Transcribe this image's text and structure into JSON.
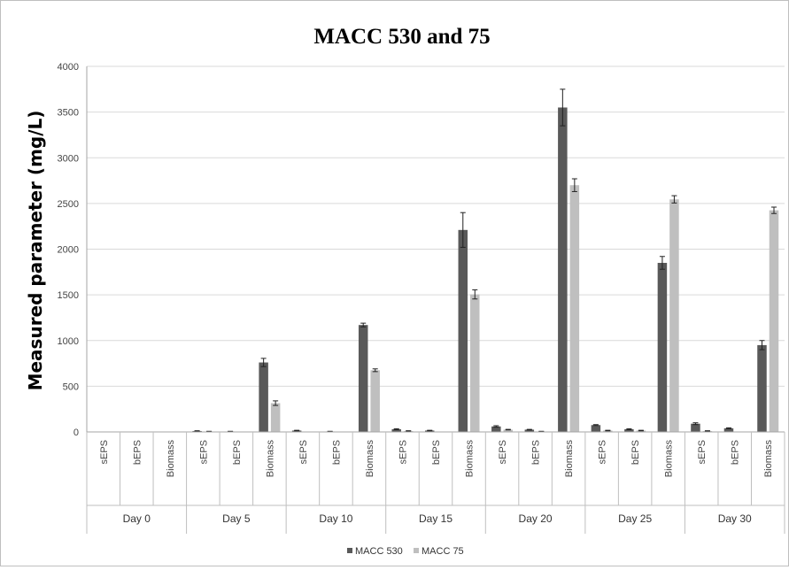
{
  "chart_data": {
    "type": "bar",
    "title": "MACC 530 and 75",
    "xlabel": "",
    "ylabel": "Measured parameter (mg/L)",
    "ylim": [
      0,
      4000
    ],
    "yticks": [
      0,
      500,
      1000,
      1500,
      2000,
      2500,
      3000,
      3500,
      4000
    ],
    "grid": true,
    "legend_position": "bottom",
    "groups": [
      "Day 0",
      "Day 5",
      "Day 10",
      "Day 15",
      "Day 20",
      "Day 25",
      "Day 30"
    ],
    "subcategories": [
      "sEPS",
      "bEPS",
      "Biomass"
    ],
    "series": [
      {
        "name": "MACC 530",
        "color": "#595959",
        "values": [
          0,
          0,
          0,
          10,
          5,
          760,
          15,
          5,
          1170,
          30,
          15,
          2210,
          60,
          25,
          3550,
          75,
          30,
          1850,
          90,
          40,
          950
        ],
        "errors": [
          0,
          0,
          0,
          3,
          2,
          45,
          3,
          2,
          20,
          5,
          3,
          190,
          8,
          3,
          200,
          5,
          5,
          70,
          10,
          5,
          50
        ]
      },
      {
        "name": "MACC 75",
        "color": "#bfbfbf",
        "values": [
          0,
          0,
          0,
          5,
          0,
          315,
          0,
          0,
          675,
          10,
          0,
          1505,
          25,
          5,
          2700,
          15,
          15,
          2545,
          10,
          0,
          2425
        ],
        "errors": [
          0,
          0,
          0,
          2,
          0,
          25,
          0,
          0,
          15,
          3,
          0,
          50,
          3,
          2,
          70,
          3,
          3,
          40,
          3,
          0,
          35
        ]
      }
    ]
  }
}
